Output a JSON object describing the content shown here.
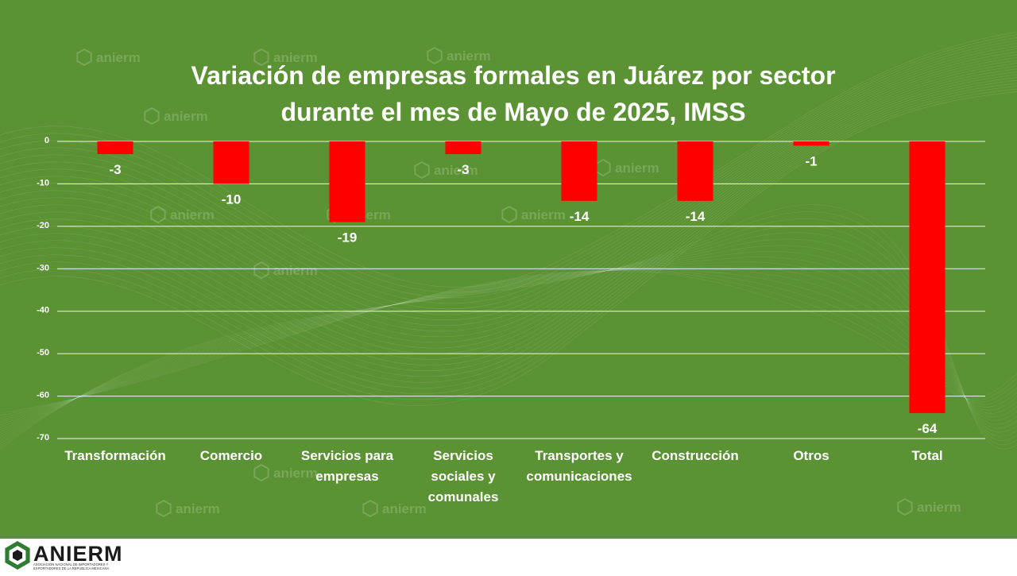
{
  "brand": {
    "logo_text": "ANIERM",
    "logo_subtitle_1": "ASOCIACIÓN NACIONAL DE IMPORTADORES Y",
    "logo_subtitle_2": "EXPORTADORES DE LA REPÚBLICA MEXICANA",
    "watermark_text": "anierm"
  },
  "colors": {
    "background": "#5b9233",
    "bar": "#ff0000",
    "text": "#ffffff",
    "footer": "#ffffff"
  },
  "chart_data": {
    "type": "bar",
    "title_line1": "Variación de empresas formales en Juárez por sector",
    "title_line2": "durante el mes de Mayo de 2025, IMSS",
    "categories": [
      [
        "Transformación"
      ],
      [
        "Comercio"
      ],
      [
        "Servicios para",
        "empresas"
      ],
      [
        "Servicios",
        "sociales y",
        "comunales"
      ],
      [
        "Transportes y",
        "comunicaciones"
      ],
      [
        "Construcción"
      ],
      [
        "Otros"
      ],
      [
        "Total"
      ]
    ],
    "values": [
      -3,
      -10,
      -19,
      -3,
      -14,
      -14,
      -1,
      -64
    ],
    "data_labels": [
      "-3",
      "-10",
      "-19",
      "-3",
      "-14",
      "-14",
      "-1",
      "-64"
    ],
    "ylim": [
      -70,
      0
    ],
    "yticks": [
      0,
      -10,
      -20,
      -30,
      -40,
      -50,
      -60,
      -70
    ],
    "grid": true,
    "legend": "none"
  }
}
